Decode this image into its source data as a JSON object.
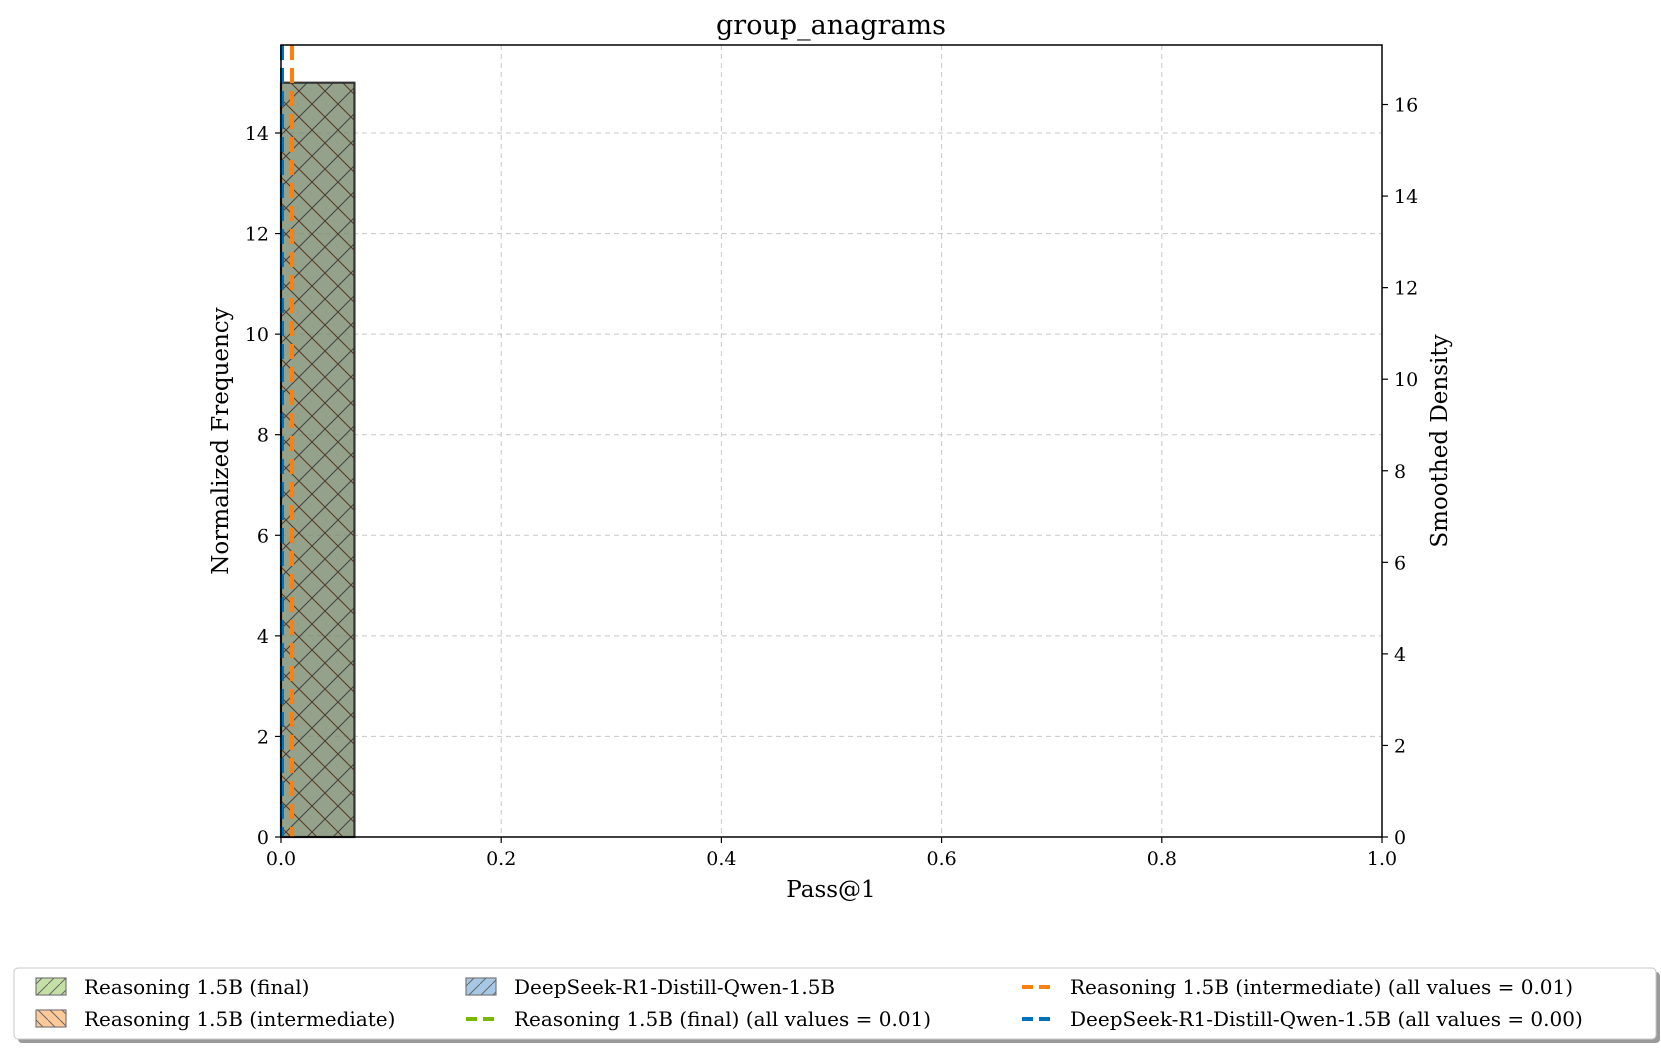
{
  "chart_data": {
    "type": "histogram",
    "title": "group_anagrams",
    "xlabel": "Pass@1",
    "ylabel": "Normalized Frequency",
    "y2label": "Smoothed Density",
    "xlim": [
      0,
      1
    ],
    "ylim": [
      0,
      15.75
    ],
    "y2lim": [
      0,
      17.3
    ],
    "xticks": [
      "0.0",
      "0.2",
      "0.4",
      "0.6",
      "0.8",
      "1.0"
    ],
    "yticks": [
      "0",
      "2",
      "4",
      "6",
      "8",
      "10",
      "12",
      "14"
    ],
    "y2ticks": [
      "0",
      "2",
      "4",
      "6",
      "8",
      "10",
      "12",
      "14",
      "16"
    ],
    "grid": true,
    "legend_position": "bottom",
    "bars": [
      {
        "series": "Reasoning 1.5B (final)",
        "x0": 0.0,
        "x1": 0.0667,
        "value": 15,
        "color": "#8dc63f"
      },
      {
        "series": "Reasoning 1.5B (intermediate)",
        "x0": 0.0,
        "x1": 0.0667,
        "value": 15,
        "color": "#ff7f0e"
      },
      {
        "series": "DeepSeek-R1-Distill-Qwen-1.5B",
        "x0": 0.0,
        "x1": 0.0667,
        "value": 15,
        "color": "#1f77b4"
      }
    ],
    "vlines": [
      {
        "series": "Reasoning 1.5B (final) (all values = 0.01)",
        "x": 0.01,
        "color": "#76b900"
      },
      {
        "series": "Reasoning 1.5B (intermediate) (all values = 0.01)",
        "x": 0.01,
        "color": "#ff7f0e"
      },
      {
        "series": "DeepSeek-R1-Distill-Qwen-1.5B (all values = 0.00)",
        "x": 0.0,
        "color": "#0072bd"
      }
    ],
    "legend": [
      {
        "label": "Reasoning 1.5B (final)",
        "kind": "patch",
        "color": "#c5e0a5",
        "edge": "#7a7a7a"
      },
      {
        "label": "Reasoning 1.5B (intermediate)",
        "kind": "patch",
        "color": "#ffc999",
        "edge": "#7a7a7a"
      },
      {
        "label": "DeepSeek-R1-Distill-Qwen-1.5B",
        "kind": "patch",
        "color": "#a6c8e6",
        "edge": "#7a7a7a"
      },
      {
        "label": "Reasoning 1.5B (final) (all values = 0.01)",
        "kind": "dash",
        "color": "#76b900"
      },
      {
        "label": "Reasoning 1.5B (intermediate) (all values = 0.01)",
        "kind": "dash",
        "color": "#ff7f0e"
      },
      {
        "label": "DeepSeek-R1-Distill-Qwen-1.5B (all values = 0.00)",
        "kind": "dash",
        "color": "#0072bd"
      }
    ]
  }
}
